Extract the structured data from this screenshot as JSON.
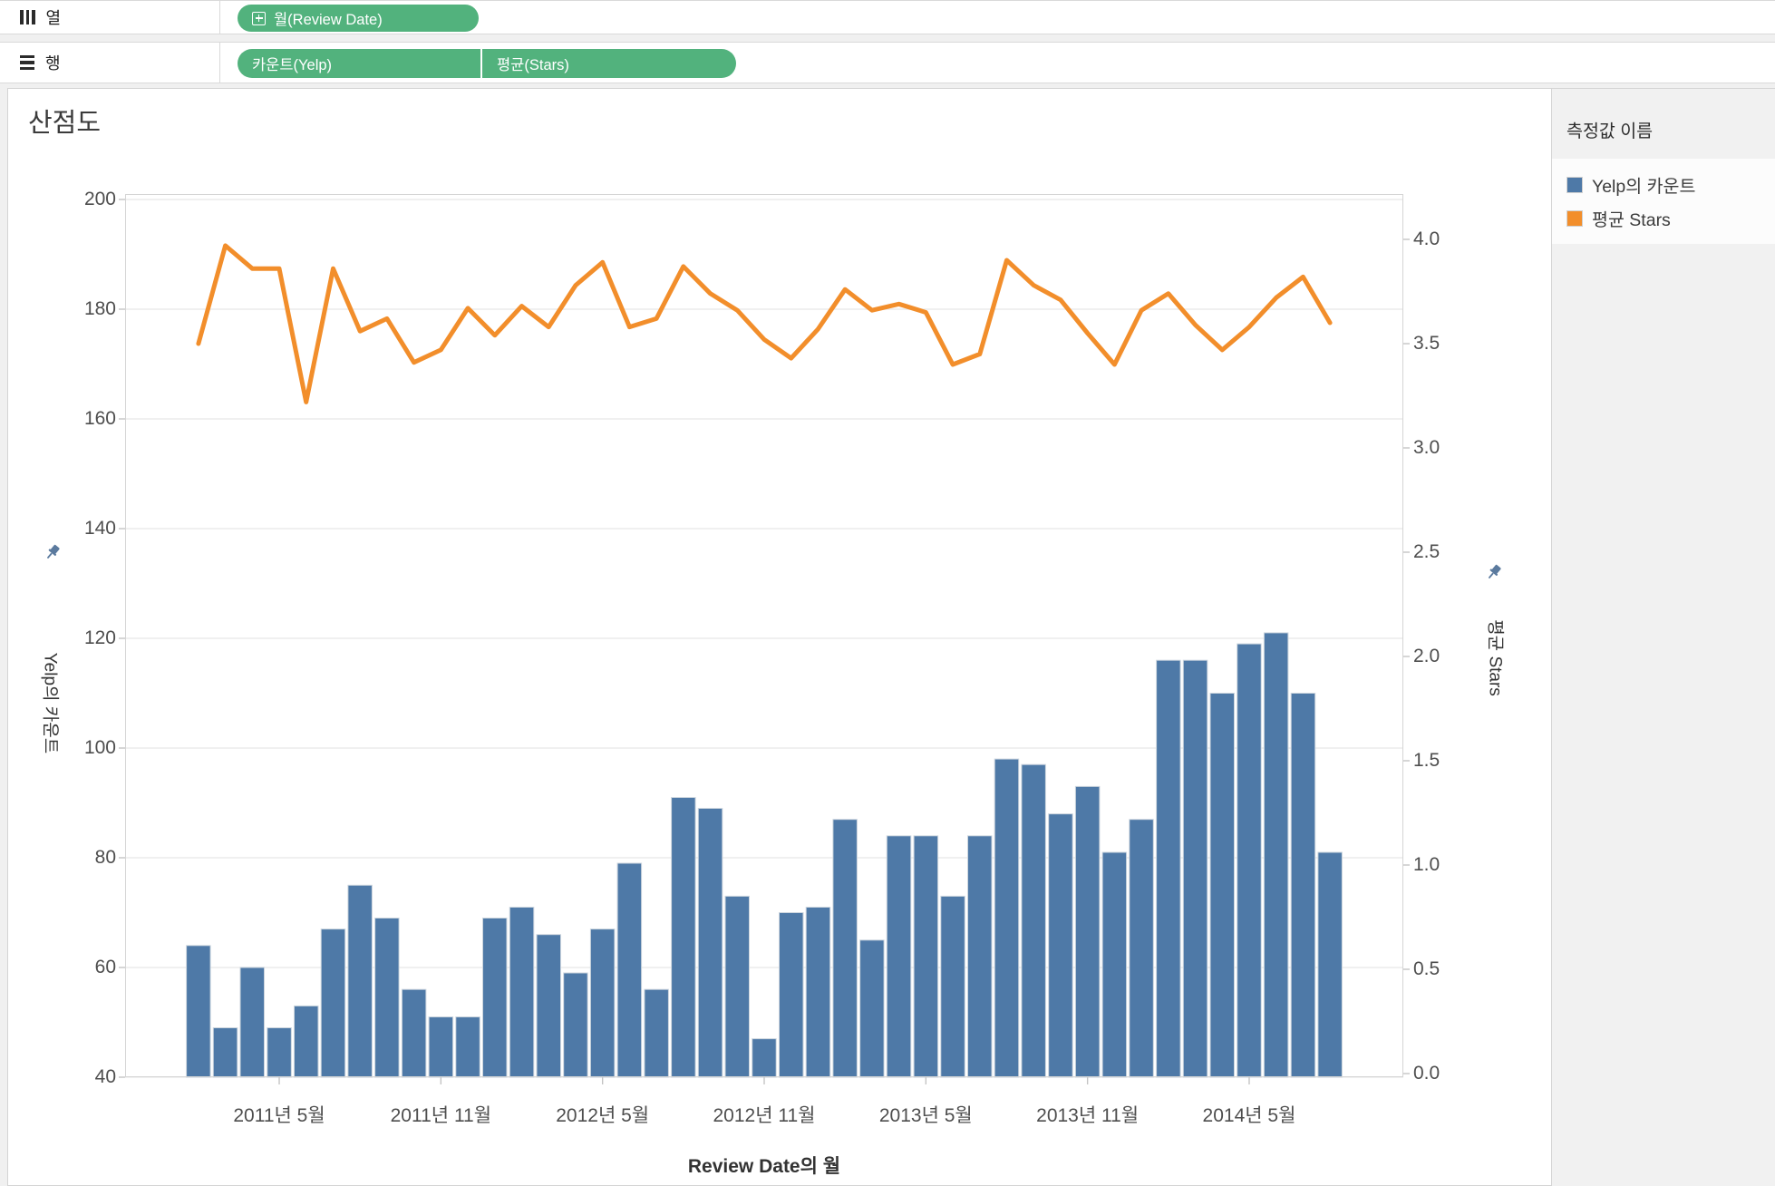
{
  "shelves": {
    "columns": {
      "label": "열",
      "pill": "월(Review Date)"
    },
    "rows": {
      "label": "행",
      "pills": [
        "카운트(Yelp)",
        "평균(Stars)"
      ]
    }
  },
  "sheet": {
    "title": "산점도"
  },
  "legend": {
    "title": "측정값 이름",
    "items": [
      {
        "label": "Yelp의 카운트",
        "color": "#4e79a7"
      },
      {
        "label": "평균 Stars",
        "color": "#f28e2b"
      }
    ]
  },
  "colors": {
    "bar": "#4e79a7",
    "bar_border": "#ccd5de",
    "line": "#f28e2b",
    "gridline": "#ebebeb",
    "plot_border": "#d5d5d5",
    "tick": "#c4c4c4",
    "pill_green": "#52b27d",
    "pin": "#5b7a9e"
  },
  "chart_data": {
    "type": "bar",
    "subtype": "dual-axis bar + line, monthly time series",
    "title": "산점도",
    "xlabel": "Review Date의 월",
    "x_tick_labels": [
      "2011년 5월",
      "2011년 11월",
      "2012년 5월",
      "2012년 11월",
      "2013년 5월",
      "2013년 11월",
      "2014년 5월"
    ],
    "x_tick_month_indices": [
      3,
      9,
      15,
      21,
      27,
      33,
      39
    ],
    "months_start": "2011년 2월",
    "months_end": "2014년 8월",
    "left_axis": {
      "title": "Yelp의 카운트",
      "ticks": [
        200,
        180,
        160,
        140,
        120,
        100,
        80,
        60,
        40
      ],
      "ylim": [
        40,
        201.5
      ]
    },
    "right_axis": {
      "title": "평균 Stars",
      "ticks": [
        "4.0",
        "3.5",
        "3.0",
        "2.5",
        "2.0",
        "1.5",
        "1.0",
        "0.5",
        "0.0"
      ],
      "ylim": [
        0,
        4.23
      ]
    },
    "series": [
      {
        "name": "Yelp의 카운트",
        "type": "bar",
        "axis": "left",
        "values": [
          64,
          49,
          60,
          49,
          53,
          67,
          75,
          69,
          56,
          51,
          51,
          69,
          71,
          66,
          59,
          67,
          79,
          56,
          91,
          89,
          73,
          47,
          70,
          71,
          87,
          65,
          84,
          84,
          73,
          84,
          98,
          97,
          88,
          93,
          81,
          87,
          116,
          116,
          110,
          119,
          121,
          110,
          81
        ]
      },
      {
        "name": "평균 Stars",
        "type": "line",
        "axis": "right",
        "values": [
          3.5,
          3.97,
          3.86,
          3.86,
          3.22,
          3.86,
          3.56,
          3.62,
          3.41,
          3.47,
          3.67,
          3.54,
          3.68,
          3.58,
          3.78,
          3.89,
          3.58,
          3.62,
          3.87,
          3.74,
          3.66,
          3.52,
          3.43,
          3.57,
          3.76,
          3.66,
          3.69,
          3.65,
          3.4,
          3.45,
          3.9,
          3.78,
          3.71,
          3.55,
          3.4,
          3.66,
          3.74,
          3.59,
          3.47,
          3.58,
          3.72,
          3.82,
          3.6
        ]
      }
    ],
    "legend_position": "right",
    "grid": true
  }
}
